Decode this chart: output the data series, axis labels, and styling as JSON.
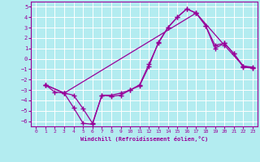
{
  "xlabel": "Windchill (Refroidissement éolien,°C)",
  "background_color": "#b3ecf0",
  "grid_color": "#c8e8eb",
  "line_color": "#990099",
  "xlim": [
    -0.5,
    23.5
  ],
  "ylim": [
    -6.5,
    5.5
  ],
  "yticks": [
    5,
    4,
    3,
    2,
    1,
    0,
    -1,
    -2,
    -3,
    -4,
    -5,
    -6
  ],
  "xticks": [
    0,
    1,
    2,
    3,
    4,
    5,
    6,
    7,
    8,
    9,
    10,
    11,
    12,
    13,
    14,
    15,
    16,
    17,
    18,
    19,
    20,
    21,
    22,
    23
  ],
  "line1_x": [
    1,
    2,
    3,
    4,
    5,
    6,
    7,
    8,
    9,
    10,
    11,
    12,
    13,
    14,
    15,
    16,
    17,
    18,
    19,
    20,
    21,
    22,
    23
  ],
  "line1_y": [
    -2.5,
    -3.2,
    -3.3,
    -4.7,
    -6.2,
    -6.3,
    -3.5,
    -3.6,
    -3.5,
    -3.0,
    -2.6,
    -0.7,
    1.6,
    3.0,
    4.0,
    4.8,
    4.4,
    3.2,
    1.3,
    1.5,
    0.5,
    -0.8,
    -0.9
  ],
  "line2_x": [
    1,
    3,
    4,
    5,
    6,
    7,
    8,
    9,
    10,
    11,
    12,
    13,
    14,
    15,
    16,
    17,
    18,
    19,
    20,
    21,
    22,
    23
  ],
  "line2_y": [
    -2.5,
    -3.3,
    -3.5,
    -4.8,
    -6.2,
    -3.5,
    -3.5,
    -3.3,
    -3.0,
    -2.5,
    -0.5,
    1.5,
    3.0,
    4.0,
    4.8,
    4.4,
    3.2,
    1.0,
    1.5,
    0.5,
    -0.7,
    -0.8
  ],
  "line3_x": [
    1,
    3,
    17,
    20,
    22,
    23
  ],
  "line3_y": [
    -2.5,
    -3.3,
    4.4,
    1.3,
    -0.7,
    -0.9
  ]
}
